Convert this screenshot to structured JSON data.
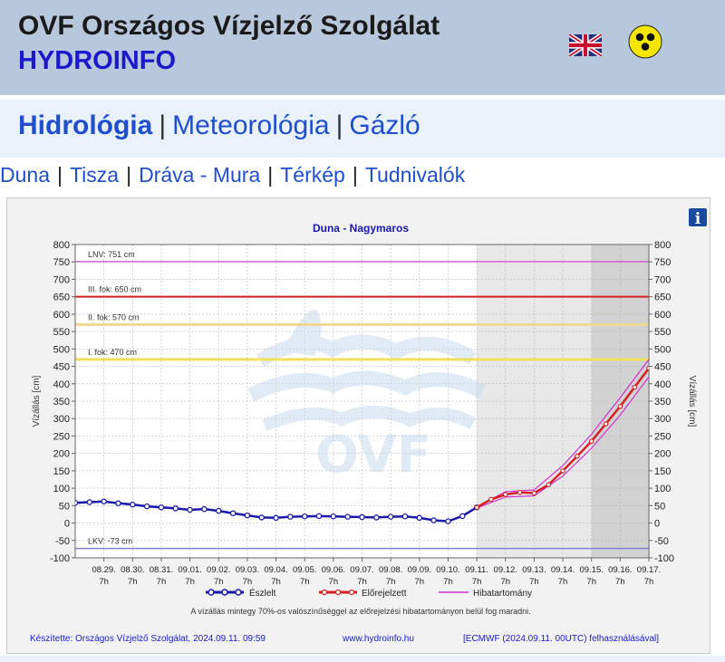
{
  "header": {
    "title": "OVF Országos Vízjelző Szolgálat",
    "subtitle": "HYDROINFO",
    "language_flag_icon": "uk-flag-icon",
    "accessibility_icon": "low-vision-icon"
  },
  "main_nav": {
    "items": [
      {
        "label": "Hidrológia",
        "active": true
      },
      {
        "label": "Meteorológia",
        "active": false
      },
      {
        "label": "Gázló",
        "active": false
      }
    ],
    "separator": "|"
  },
  "sub_nav": {
    "items": [
      "Duna",
      "Tisza",
      "Dráva - Mura",
      "Térkép",
      "Tudnivalók"
    ],
    "separator": "|"
  },
  "colors": {
    "header_bg": "#b7c8dc",
    "link": "#1f4fcf",
    "observed": "#1a1aaa",
    "forecast": "#d42020",
    "error_band": "#d030d0",
    "lnv": "#d060d0",
    "level_iii": "#d42020",
    "level_ii": "#f0d890",
    "level_i": "#f0e060",
    "lkv": "#8080d0"
  },
  "chart_data": {
    "type": "line",
    "title": "Duna - Nagymaros",
    "ylabel": "Vízállás [cm]",
    "ylabel_right": "Vízállás [cm]",
    "ylim": [
      -100,
      800
    ],
    "yticks": [
      -100,
      -50,
      0,
      50,
      100,
      150,
      200,
      250,
      300,
      350,
      400,
      450,
      500,
      550,
      600,
      650,
      700,
      750,
      800
    ],
    "xlim": [
      "2024-08-28 07:00",
      "2024-09-17 07:00"
    ],
    "xticks": [
      {
        "date": "08.29.",
        "hour": "7h"
      },
      {
        "date": "08.30.",
        "hour": "7h"
      },
      {
        "date": "08.31.",
        "hour": "7h"
      },
      {
        "date": "09.01.",
        "hour": "7h"
      },
      {
        "date": "09.02.",
        "hour": "7h"
      },
      {
        "date": "09.03.",
        "hour": "7h"
      },
      {
        "date": "09.04.",
        "hour": "7h"
      },
      {
        "date": "09.05.",
        "hour": "7h"
      },
      {
        "date": "09.06.",
        "hour": "7h"
      },
      {
        "date": "09.07.",
        "hour": "7h"
      },
      {
        "date": "09.08.",
        "hour": "7h"
      },
      {
        "date": "09.09.",
        "hour": "7h"
      },
      {
        "date": "09.10.",
        "hour": "7h"
      },
      {
        "date": "09.11.",
        "hour": "7h"
      },
      {
        "date": "09.12.",
        "hour": "7h"
      },
      {
        "date": "09.13.",
        "hour": "7h"
      },
      {
        "date": "09.14.",
        "hour": "7h"
      },
      {
        "date": "09.15.",
        "hour": "7h"
      },
      {
        "date": "09.16.",
        "hour": "7h"
      },
      {
        "date": "09.17.",
        "hour": "7h"
      }
    ],
    "reference_lines": [
      {
        "label": "LNV: 751 cm",
        "value": 751,
        "color": "#d060d0"
      },
      {
        "label": "III. fok: 650 cm",
        "value": 650,
        "color": "#d42020"
      },
      {
        "label": "II. fok: 570 cm",
        "value": 570,
        "color": "#f0d890"
      },
      {
        "label": "I. fok: 470 cm",
        "value": 470,
        "color": "#f0e060"
      },
      {
        "label": "LKV: -73 cm",
        "value": -73,
        "color": "#8080d0"
      }
    ],
    "shaded_regions": [
      {
        "from": "2024-09-11 07:00",
        "to": "2024-09-15 07:00",
        "shade": "light"
      },
      {
        "from": "2024-09-15 07:00",
        "to": "2024-09-17 07:00",
        "shade": "dark"
      }
    ],
    "series": [
      {
        "name": "Észlelt",
        "color": "#1a1aaa",
        "x": [
          "2024-08-28 07:00",
          "2024-08-28 19:00",
          "2024-08-29 07:00",
          "2024-08-29 19:00",
          "2024-08-30 07:00",
          "2024-08-30 19:00",
          "2024-08-31 07:00",
          "2024-08-31 19:00",
          "2024-09-01 07:00",
          "2024-09-01 19:00",
          "2024-09-02 07:00",
          "2024-09-02 19:00",
          "2024-09-03 07:00",
          "2024-09-03 19:00",
          "2024-09-04 07:00",
          "2024-09-04 19:00",
          "2024-09-05 07:00",
          "2024-09-05 19:00",
          "2024-09-06 07:00",
          "2024-09-06 19:00",
          "2024-09-07 07:00",
          "2024-09-07 19:00",
          "2024-09-08 07:00",
          "2024-09-08 19:00",
          "2024-09-09 07:00",
          "2024-09-09 19:00",
          "2024-09-10 07:00",
          "2024-09-10 19:00",
          "2024-09-11 07:00"
        ],
        "values": [
          58,
          60,
          62,
          57,
          53,
          48,
          45,
          42,
          38,
          40,
          35,
          28,
          22,
          16,
          15,
          18,
          19,
          20,
          19,
          18,
          17,
          16,
          18,
          19,
          15,
          8,
          5,
          20,
          45
        ]
      },
      {
        "name": "Előrejelzett",
        "color": "#d42020",
        "x": [
          "2024-09-11 07:00",
          "2024-09-11 19:00",
          "2024-09-12 07:00",
          "2024-09-12 19:00",
          "2024-09-13 07:00",
          "2024-09-13 19:00",
          "2024-09-14 07:00",
          "2024-09-14 19:00",
          "2024-09-15 07:00",
          "2024-09-15 19:00",
          "2024-09-16 07:00",
          "2024-09-16 19:00",
          "2024-09-17 07:00"
        ],
        "values": [
          45,
          68,
          82,
          88,
          86,
          110,
          150,
          192,
          235,
          285,
          335,
          390,
          445
        ]
      },
      {
        "name": "Hibatartomány",
        "color": "#d030d0",
        "x": [
          "2024-09-11 07:00",
          "2024-09-12 07:00",
          "2024-09-13 07:00",
          "2024-09-14 07:00",
          "2024-09-15 07:00",
          "2024-09-16 07:00",
          "2024-09-17 07:00"
        ],
        "upper": [
          47,
          90,
          95,
          165,
          255,
          360,
          470
        ],
        "lower": [
          43,
          75,
          78,
          135,
          215,
          310,
          420
        ]
      }
    ],
    "legend": {
      "placement": "bottom",
      "items": [
        "Észlelt",
        "Előrejelzett",
        "Hibatartomány"
      ]
    },
    "note": "A vízállás mintegy 70%-os valószínűséggel az előrejelzési hibatartományon belül fog maradni.",
    "footer": {
      "made_by": "Készítette: Országos Vízjelző Szolgálat, 2024.09.11. 09:59",
      "website": "www.hydroinfo.hu",
      "model": "[ECMWF (2024.09.11. 00UTC) felhasználásával]"
    },
    "watermark": "OVF",
    "info_icon": "info-icon"
  }
}
